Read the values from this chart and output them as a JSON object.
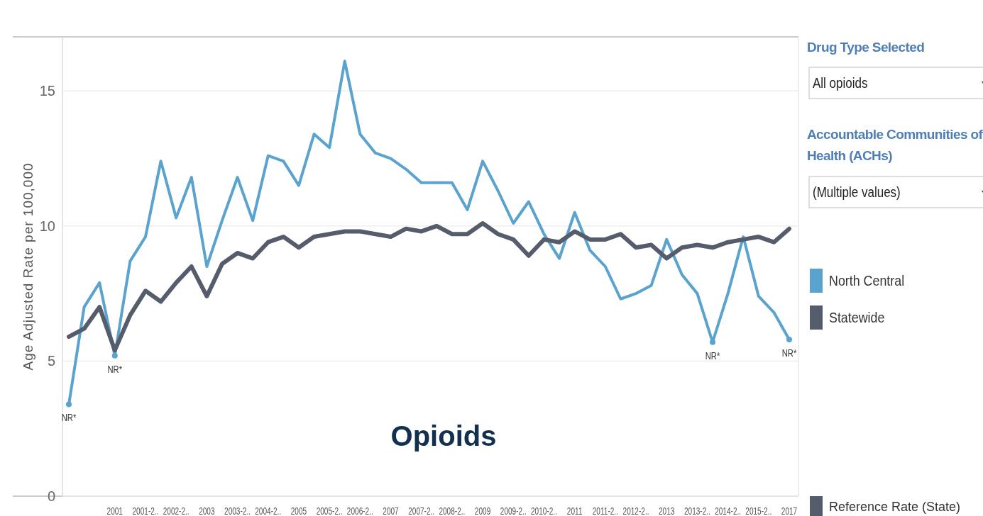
{
  "chart_data": {
    "type": "line",
    "title": "Opioids",
    "ylabel": "Age Adjusted Rate per 100,000",
    "categories": [
      null,
      null,
      null,
      "2001",
      null,
      "2001-2..",
      null,
      "2002-2..",
      null,
      "2003",
      null,
      "2003-2..",
      null,
      "2004-2..",
      null,
      "2005",
      null,
      "2005-2..",
      null,
      "2006-2..",
      null,
      "2007",
      null,
      "2007-2..",
      null,
      "2008-2..",
      null,
      "2009",
      null,
      "2009-2..",
      null,
      "2010-2..",
      null,
      "2011",
      null,
      "2011-2..",
      null,
      "2012-2..",
      null,
      "2013",
      null,
      "2013-2..",
      null,
      "2014-2..",
      null,
      "2015-2..",
      null,
      "2017"
    ],
    "series": [
      {
        "name": "North Central",
        "color": "#5ba3cf",
        "values": [
          3.4,
          7.0,
          7.9,
          5.2,
          8.7,
          9.6,
          12.4,
          10.3,
          11.8,
          8.5,
          10.2,
          11.8,
          10.2,
          12.6,
          12.4,
          11.5,
          13.4,
          12.9,
          16.1,
          13.4,
          12.7,
          12.5,
          12.1,
          11.6,
          11.6,
          11.6,
          10.6,
          12.4,
          11.3,
          10.1,
          10.9,
          9.7,
          8.8,
          10.5,
          9.1,
          8.5,
          7.3,
          7.5,
          7.8,
          9.5,
          8.2,
          7.5,
          5.7,
          7.5,
          9.6,
          7.4,
          6.8,
          5.8
        ],
        "value_labels": [
          "NR*",
          null,
          null,
          "NR*",
          null,
          null,
          null,
          null,
          null,
          null,
          null,
          null,
          null,
          null,
          null,
          null,
          null,
          null,
          null,
          null,
          null,
          null,
          null,
          null,
          null,
          null,
          null,
          null,
          null,
          null,
          null,
          null,
          null,
          null,
          null,
          null,
          null,
          null,
          null,
          null,
          null,
          null,
          "NR*",
          null,
          null,
          null,
          null,
          "NR*"
        ]
      },
      {
        "name": "Statewide",
        "color": "#555c6b",
        "values": [
          5.9,
          6.2,
          7.0,
          5.4,
          6.7,
          7.6,
          7.2,
          7.9,
          8.5,
          7.4,
          8.6,
          9.0,
          8.8,
          9.4,
          9.6,
          9.2,
          9.6,
          9.7,
          9.8,
          9.8,
          9.7,
          9.6,
          9.9,
          9.8,
          10.0,
          9.7,
          9.7,
          10.1,
          9.7,
          9.5,
          8.9,
          9.5,
          9.4,
          9.8,
          9.5,
          9.5,
          9.7,
          9.2,
          9.3,
          8.8,
          9.2,
          9.3,
          9.2,
          9.4,
          9.5,
          9.6,
          9.4,
          9.9
        ]
      }
    ],
    "ylim": [
      0,
      17
    ],
    "yticks": [
      0,
      5,
      10,
      15
    ],
    "grid": "y",
    "legend": "right",
    "annotations": [
      "Drug Type Selected",
      "All opioids",
      "Accountable Communities of Health (ACHs)",
      "(Multiple values)",
      "Reference Rate (State)"
    ]
  }
}
